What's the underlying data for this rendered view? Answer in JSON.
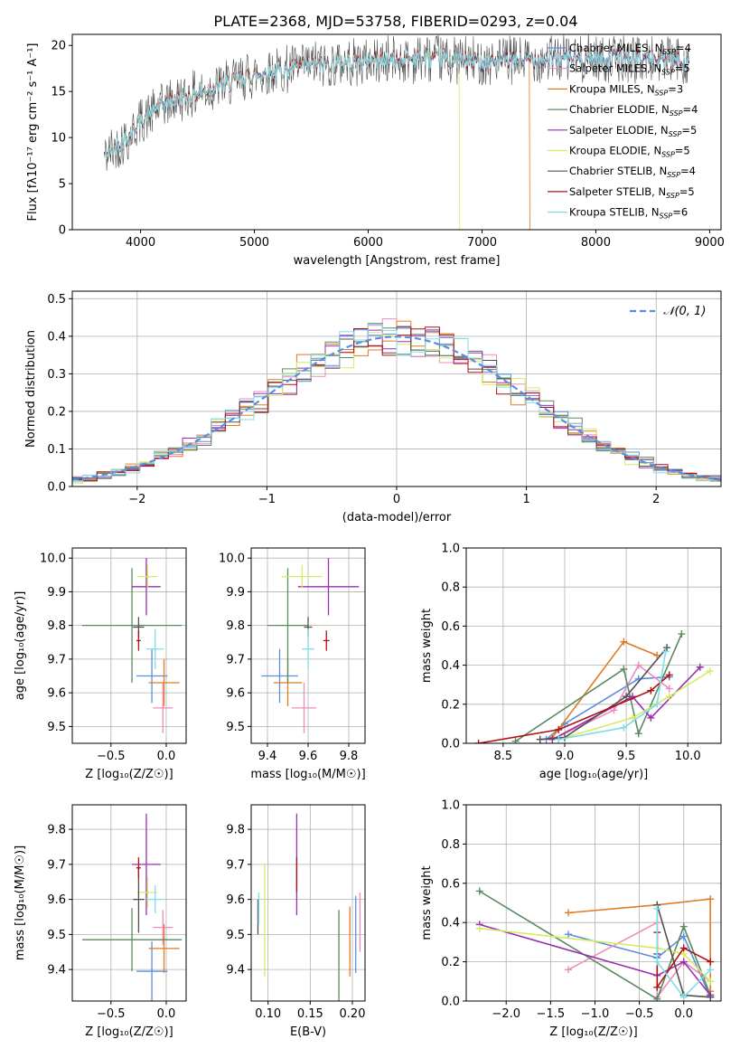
{
  "figure": {
    "title": "PLATE=2368, MJD=53758, FIBERID=0293, z=0.04"
  },
  "series": [
    {
      "name": "Chabrier MILES",
      "nssp": "4",
      "color": "#5a8ee0"
    },
    {
      "name": "Salpeter MILES",
      "nssp": "5",
      "color": "#f08cbc"
    },
    {
      "name": "Kroupa MILES",
      "nssp": "3",
      "color": "#e07b24"
    },
    {
      "name": "Chabrier ELODIE",
      "nssp": "4",
      "color": "#5a8a60"
    },
    {
      "name": "Salpeter ELODIE",
      "nssp": "5",
      "color": "#9a30b0"
    },
    {
      "name": "Kroupa ELODIE",
      "nssp": "5",
      "color": "#d4ec60"
    },
    {
      "name": "Chabrier STELIB",
      "nssp": "4",
      "color": "#505050"
    },
    {
      "name": "Salpeter STELIB",
      "nssp": "5",
      "color": "#b01010"
    },
    {
      "name": "Kroupa STELIB",
      "nssp": "6",
      "color": "#80dce8"
    }
  ],
  "chart_data": [
    {
      "id": "spectrum",
      "type": "line",
      "xlabel": "wavelength [Angstrom, rest frame]",
      "ylabel": "Flux [fλ10⁻¹⁷ erg cm⁻² s⁻¹ A⁻¹]",
      "xlim": [
        3400,
        9100
      ],
      "ylim": [
        0,
        21.2
      ],
      "xticks": [
        4000,
        5000,
        6000,
        7000,
        8000,
        9000
      ],
      "yticks": [
        0,
        5,
        10,
        15,
        20
      ],
      "grid": false,
      "legend": "upper right",
      "x_range_data": [
        3680,
        8820
      ],
      "continuum": [
        [
          3680,
          8
        ],
        [
          3900,
          10.2
        ],
        [
          4000,
          11.8
        ],
        [
          4200,
          13.6
        ],
        [
          4500,
          14.8
        ],
        [
          5000,
          16.8
        ],
        [
          5500,
          17.8
        ],
        [
          6000,
          18.3
        ],
        [
          6500,
          18.6
        ],
        [
          7000,
          18.2
        ],
        [
          7500,
          18.5
        ],
        [
          8000,
          18.6
        ],
        [
          8500,
          18.5
        ],
        [
          8820,
          18.3
        ]
      ],
      "dropouts": [
        {
          "series": "Kroupa ELODIE",
          "from_x": 6800
        },
        {
          "series": "Kroupa MILES",
          "from_x": 7420
        }
      ]
    },
    {
      "id": "residuals",
      "type": "histogram",
      "xlabel": "(data-model)/error",
      "ylabel": "Normed distribution",
      "xlim": [
        -2.5,
        2.5
      ],
      "ylim": [
        0,
        0.52
      ],
      "xticks": [
        -2,
        -1,
        0,
        1,
        2
      ],
      "yticks": [
        0.0,
        0.1,
        0.2,
        0.3,
        0.4,
        0.5
      ],
      "grid": true,
      "legend": "upper right",
      "bin_width": 0.11,
      "reference_label": "𝒩(0, 1)",
      "reference_color": "#5a8ee0"
    },
    {
      "id": "age_vs_Z",
      "type": "errorbar",
      "xlabel": "Z [log₁₀(Z/Z☉)]",
      "ylabel": "age  [log₁₀(age/yr)]",
      "xlim": [
        -0.85,
        0.18
      ],
      "ylim": [
        9.45,
        10.03
      ],
      "xticks": [
        -0.5,
        0.0
      ],
      "yticks": [
        9.5,
        9.6,
        9.7,
        9.8,
        9.9,
        10.0
      ],
      "grid": true,
      "points": [
        {
          "series": "Chabrier MILES",
          "x": -0.13,
          "xerr": 0.14,
          "y": 9.65,
          "yerr": 0.08
        },
        {
          "series": "Salpeter MILES",
          "x": -0.03,
          "xerr": 0.09,
          "y": 9.555,
          "yerr": 0.075
        },
        {
          "series": "Kroupa MILES",
          "x": -0.02,
          "xerr": 0.14,
          "y": 9.63,
          "yerr": 0.07
        },
        {
          "series": "Chabrier ELODIE",
          "x": -0.31,
          "xerr": 0.45,
          "y": 9.8,
          "yerr": 0.17
        },
        {
          "series": "Salpeter ELODIE",
          "x": -0.18,
          "xerr": 0.13,
          "y": 9.915,
          "yerr": 0.085
        },
        {
          "series": "Kroupa ELODIE",
          "x": -0.17,
          "xerr": 0.09,
          "y": 9.945,
          "yerr": 0.035
        },
        {
          "series": "Chabrier STELIB",
          "x": -0.25,
          "xerr": 0.05,
          "y": 9.795,
          "yerr": 0.03
        },
        {
          "series": "Salpeter STELIB",
          "x": -0.25,
          "xerr": 0.02,
          "y": 9.755,
          "yerr": 0.03
        },
        {
          "series": "Kroupa STELIB",
          "x": -0.1,
          "xerr": 0.08,
          "y": 9.73,
          "yerr": 0.06
        }
      ]
    },
    {
      "id": "age_vs_mass",
      "type": "errorbar",
      "xlabel": "mass [log₁₀(M/M☉)]",
      "ylabel": "",
      "xlim": [
        9.32,
        9.88
      ],
      "ylim": [
        9.45,
        10.03
      ],
      "xticks": [
        9.4,
        9.6,
        9.8
      ],
      "yticks": [
        9.5,
        9.6,
        9.7,
        9.8,
        9.9,
        10.0
      ],
      "grid": true,
      "points": [
        {
          "series": "Chabrier MILES",
          "x": 9.46,
          "xerr": 0.09,
          "y": 9.65,
          "yerr": 0.08
        },
        {
          "series": "Salpeter MILES",
          "x": 9.58,
          "xerr": 0.06,
          "y": 9.555,
          "yerr": 0.075
        },
        {
          "series": "Kroupa MILES",
          "x": 9.5,
          "xerr": 0.07,
          "y": 9.63,
          "yerr": 0.07
        },
        {
          "series": "Chabrier ELODIE",
          "x": 9.5,
          "xerr": 0.1,
          "y": 9.8,
          "yerr": 0.17
        },
        {
          "series": "Salpeter ELODIE",
          "x": 9.7,
          "xerr": 0.15,
          "y": 9.915,
          "yerr": 0.085
        },
        {
          "series": "Kroupa ELODIE",
          "x": 9.57,
          "xerr": 0.1,
          "y": 9.945,
          "yerr": 0.035
        },
        {
          "series": "Chabrier STELIB",
          "x": 9.6,
          "xerr": 0.02,
          "y": 9.795,
          "yerr": 0.03
        },
        {
          "series": "Salpeter STELIB",
          "x": 9.69,
          "xerr": 0.015,
          "y": 9.755,
          "yerr": 0.03
        },
        {
          "series": "Kroupa STELIB",
          "x": 9.6,
          "xerr": 0.03,
          "y": 9.73,
          "yerr": 0.06
        }
      ]
    },
    {
      "id": "mass_vs_Z",
      "type": "errorbar",
      "xlabel": "Z [log₁₀(Z/Z☉)]",
      "ylabel": "mass [log₁₀(M/M☉)]",
      "xlim": [
        -0.85,
        0.18
      ],
      "ylim": [
        9.31,
        9.87
      ],
      "xticks": [
        -0.5,
        0.0
      ],
      "yticks": [
        9.4,
        9.5,
        9.6,
        9.7,
        9.8
      ],
      "grid": true,
      "points": [
        {
          "series": "Chabrier MILES",
          "x": -0.13,
          "xerr": 0.14,
          "y": 9.395,
          "yerr": 0.085
        },
        {
          "series": "Salpeter MILES",
          "x": -0.03,
          "xerr": 0.09,
          "y": 9.52,
          "yerr": 0.05
        },
        {
          "series": "Kroupa MILES",
          "x": -0.02,
          "xerr": 0.14,
          "y": 9.46,
          "yerr": 0.07
        },
        {
          "series": "Chabrier ELODIE",
          "x": -0.31,
          "xerr": 0.45,
          "y": 9.485,
          "yerr": 0.09
        },
        {
          "series": "Salpeter ELODIE",
          "x": -0.18,
          "xerr": 0.13,
          "y": 9.7,
          "yerr": 0.145
        },
        {
          "series": "Kroupa ELODIE",
          "x": -0.17,
          "xerr": 0.09,
          "y": 9.62,
          "yerr": 0.045
        },
        {
          "series": "Chabrier STELIB",
          "x": -0.25,
          "xerr": 0.05,
          "y": 9.6,
          "yerr": 0.095
        },
        {
          "series": "Salpeter STELIB",
          "x": -0.25,
          "xerr": 0.02,
          "y": 9.69,
          "yerr": 0.03
        },
        {
          "series": "Kroupa STELIB",
          "x": -0.1,
          "xerr": 0.08,
          "y": 9.6,
          "yerr": 0.04
        }
      ]
    },
    {
      "id": "mass_vs_ebv",
      "type": "errorbar",
      "xlabel": "E(B-V)",
      "ylabel": "",
      "xlim": [
        0.08,
        0.215
      ],
      "ylim": [
        9.31,
        9.87
      ],
      "xticks": [
        0.1,
        0.15,
        0.2
      ],
      "yticks": [
        9.4,
        9.5,
        9.6,
        9.7,
        9.8
      ],
      "grid": true,
      "points": [
        {
          "series": "Chabrier MILES",
          "x": 0.204,
          "xerr": 0,
          "y": 9.5,
          "yerr": 0.11
        },
        {
          "series": "Salpeter MILES",
          "x": 0.209,
          "xerr": 0,
          "y": 9.535,
          "yerr": 0.085
        },
        {
          "series": "Kroupa MILES",
          "x": 0.197,
          "xerr": 0,
          "y": 9.48,
          "yerr": 0.1
        },
        {
          "series": "Chabrier ELODIE",
          "x": 0.184,
          "xerr": 0,
          "y": 9.42,
          "yerr": 0.15
        },
        {
          "series": "Salpeter ELODIE",
          "x": 0.134,
          "xerr": 0,
          "y": 9.7,
          "yerr": 0.145
        },
        {
          "series": "Kroupa ELODIE",
          "x": 0.096,
          "xerr": 0,
          "y": 9.54,
          "yerr": 0.16
        },
        {
          "series": "Chabrier STELIB",
          "x": 0.088,
          "xerr": 0,
          "y": 9.55,
          "yerr": 0.05
        },
        {
          "series": "Salpeter STELIB",
          "x": 0.134,
          "xerr": 0,
          "y": 9.67,
          "yerr": 0.05
        },
        {
          "series": "Kroupa STELIB",
          "x": 0.089,
          "xerr": 0,
          "y": 9.575,
          "yerr": 0.045
        }
      ]
    },
    {
      "id": "weight_vs_age",
      "type": "line",
      "xlabel": "age  [log₁₀(age/yr)]",
      "ylabel": "mass weight",
      "xlim": [
        8.2,
        10.27
      ],
      "ylim": [
        0,
        1.0
      ],
      "xticks": [
        8.5,
        9.0,
        9.5,
        10.0
      ],
      "yticks": [
        0.0,
        0.2,
        0.4,
        0.6,
        0.8,
        1.0
      ],
      "grid": true,
      "lines": [
        {
          "series": "Chabrier MILES",
          "points": [
            [
              8.85,
              0.02
            ],
            [
              9.0,
              0.1
            ],
            [
              9.6,
              0.33
            ],
            [
              9.85,
              0.34
            ]
          ]
        },
        {
          "series": "Salpeter MILES",
          "points": [
            [
              8.9,
              0.02
            ],
            [
              9.4,
              0.17
            ],
            [
              9.6,
              0.4
            ],
            [
              9.85,
              0.28
            ]
          ]
        },
        {
          "series": "Kroupa MILES",
          "points": [
            [
              8.9,
              0.03
            ],
            [
              9.48,
              0.52
            ],
            [
              9.75,
              0.45
            ]
          ]
        },
        {
          "series": "Chabrier ELODIE",
          "points": [
            [
              8.6,
              0.01
            ],
            [
              9.48,
              0.38
            ],
            [
              9.6,
              0.05
            ],
            [
              9.95,
              0.56
            ]
          ]
        },
        {
          "series": "Salpeter ELODIE",
          "points": [
            [
              8.9,
              0.02
            ],
            [
              9.55,
              0.24
            ],
            [
              9.7,
              0.13
            ],
            [
              10.1,
              0.39
            ]
          ]
        },
        {
          "series": "Kroupa ELODIE",
          "points": [
            [
              8.95,
              0.02
            ],
            [
              9.55,
              0.13
            ],
            [
              9.85,
              0.24
            ],
            [
              10.18,
              0.37
            ]
          ]
        },
        {
          "series": "Chabrier STELIB",
          "points": [
            [
              8.8,
              0.02
            ],
            [
              9.0,
              0.03
            ],
            [
              9.5,
              0.24
            ],
            [
              9.83,
              0.49
            ]
          ]
        },
        {
          "series": "Salpeter STELIB",
          "points": [
            [
              8.3,
              0.0
            ],
            [
              8.95,
              0.07
            ],
            [
              9.7,
              0.27
            ],
            [
              9.85,
              0.35
            ]
          ]
        },
        {
          "series": "Kroupa STELIB",
          "points": [
            [
              8.95,
              0.02
            ],
            [
              9.48,
              0.08
            ],
            [
              9.75,
              0.2
            ],
            [
              9.82,
              0.47
            ]
          ]
        }
      ]
    },
    {
      "id": "weight_vs_Z",
      "type": "line",
      "xlabel": "Z [log₁₀(Z/Z☉)]",
      "ylabel": "mass weight",
      "xlim": [
        -2.45,
        0.42
      ],
      "ylim": [
        0,
        1.0
      ],
      "xticks": [
        -2.0,
        -1.5,
        -1.0,
        -0.5,
        0.0
      ],
      "yticks": [
        0.0,
        0.2,
        0.4,
        0.6,
        0.8,
        1.0
      ],
      "grid": true,
      "lines": [
        {
          "series": "Chabrier MILES",
          "points": [
            [
              -1.3,
              0.34
            ],
            [
              -0.3,
              0.22
            ],
            [
              0.0,
              0.33
            ],
            [
              0.3,
              0.02
            ]
          ]
        },
        {
          "series": "Salpeter MILES",
          "points": [
            [
              -1.3,
              0.16
            ],
            [
              -0.3,
              0.4
            ],
            [
              -0.3,
              0.02
            ],
            [
              0.0,
              0.2
            ],
            [
              0.3,
              0.1
            ]
          ]
        },
        {
          "series": "Kroupa MILES",
          "points": [
            [
              -1.3,
              0.45
            ],
            [
              -0.3,
              0.49
            ],
            [
              0.3,
              0.52
            ],
            [
              0.3,
              0.05
            ]
          ]
        },
        {
          "series": "Chabrier ELODIE",
          "points": [
            [
              -2.3,
              0.56
            ],
            [
              -0.3,
              0.01
            ],
            [
              0.0,
              0.38
            ],
            [
              0.3,
              0.03
            ]
          ]
        },
        {
          "series": "Salpeter ELODIE",
          "points": [
            [
              -2.3,
              0.39
            ],
            [
              -0.3,
              0.13
            ],
            [
              0.0,
              0.2
            ],
            [
              0.3,
              0.03
            ]
          ]
        },
        {
          "series": "Kroupa ELODIE",
          "points": [
            [
              -2.3,
              0.37
            ],
            [
              -0.3,
              0.27
            ],
            [
              0.0,
              0.24
            ],
            [
              0.3,
              0.1
            ]
          ]
        },
        {
          "series": "Chabrier STELIB",
          "points": [
            [
              -0.3,
              0.24
            ],
            [
              -0.3,
              0.49
            ],
            [
              0.0,
              0.03
            ],
            [
              0.3,
              0.02
            ]
          ]
        },
        {
          "series": "Salpeter STELIB",
          "points": [
            [
              -0.3,
              0.35
            ],
            [
              -0.3,
              0.07
            ],
            [
              0.0,
              0.27
            ],
            [
              0.3,
              0.2
            ]
          ]
        },
        {
          "series": "Kroupa STELIB",
          "points": [
            [
              -0.3,
              0.47
            ],
            [
              -0.3,
              0.2
            ],
            [
              0.0,
              0.02
            ],
            [
              0.3,
              0.16
            ]
          ]
        }
      ]
    }
  ]
}
